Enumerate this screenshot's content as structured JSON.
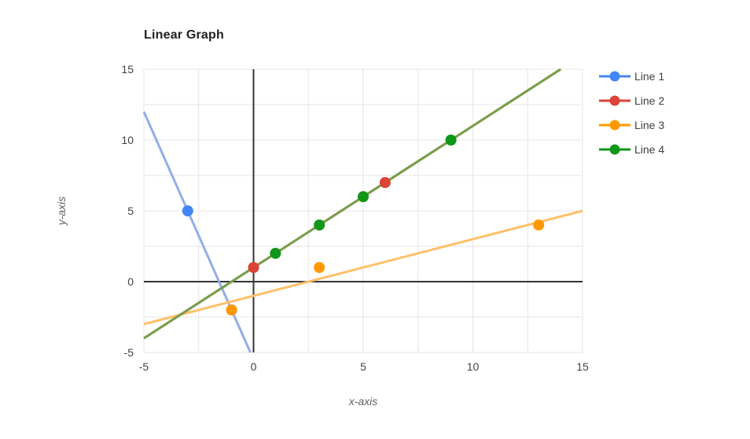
{
  "chart_data": {
    "type": "scatter",
    "title": "Linear Graph",
    "xlabel": "x-axis",
    "ylabel": "y-axis",
    "xlim": [
      -5,
      15
    ],
    "ylim": [
      -5,
      15
    ],
    "x_ticks": [
      -5,
      0,
      5,
      10,
      15
    ],
    "y_ticks": [
      -5,
      0,
      5,
      10,
      15
    ],
    "grid": true,
    "minor_grid_step": 2.5,
    "legend_position": "right",
    "colors": {
      "grid": "#e6e6e6",
      "zero_axis": "#333333",
      "tick_label": "#424242",
      "axis_title": "#616161",
      "title": "#202124",
      "legend_text": "#3c4043",
      "background": "#ffffff"
    },
    "series": [
      {
        "name": "Line 1",
        "color": "#4285F4",
        "points": [
          [
            -3,
            5
          ],
          [
            -1,
            -2
          ]
        ],
        "trendline": {
          "slope": -3.5,
          "intercept": -5.5,
          "color": "#94ACE9"
        }
      },
      {
        "name": "Line 2",
        "color": "#DB4437",
        "points": [
          [
            0,
            1
          ],
          [
            6,
            7
          ]
        ],
        "trendline": {
          "slope": 1,
          "intercept": 1,
          "color": "#7C9D4C"
        }
      },
      {
        "name": "Line 3",
        "color": "#FF9900",
        "points": [
          [
            -1,
            -2
          ],
          [
            3,
            1
          ],
          [
            13,
            4
          ]
        ],
        "trendline": {
          "slope": 0.4,
          "intercept": -1,
          "color": "#FFC06A"
        }
      },
      {
        "name": "Line 4",
        "color": "#109618",
        "points": [
          [
            1,
            2
          ],
          [
            3,
            4
          ],
          [
            5,
            6
          ],
          [
            9,
            10
          ]
        ],
        "trendline": {
          "slope": 1,
          "intercept": 1,
          "color": "#7C9D4C"
        }
      }
    ]
  }
}
